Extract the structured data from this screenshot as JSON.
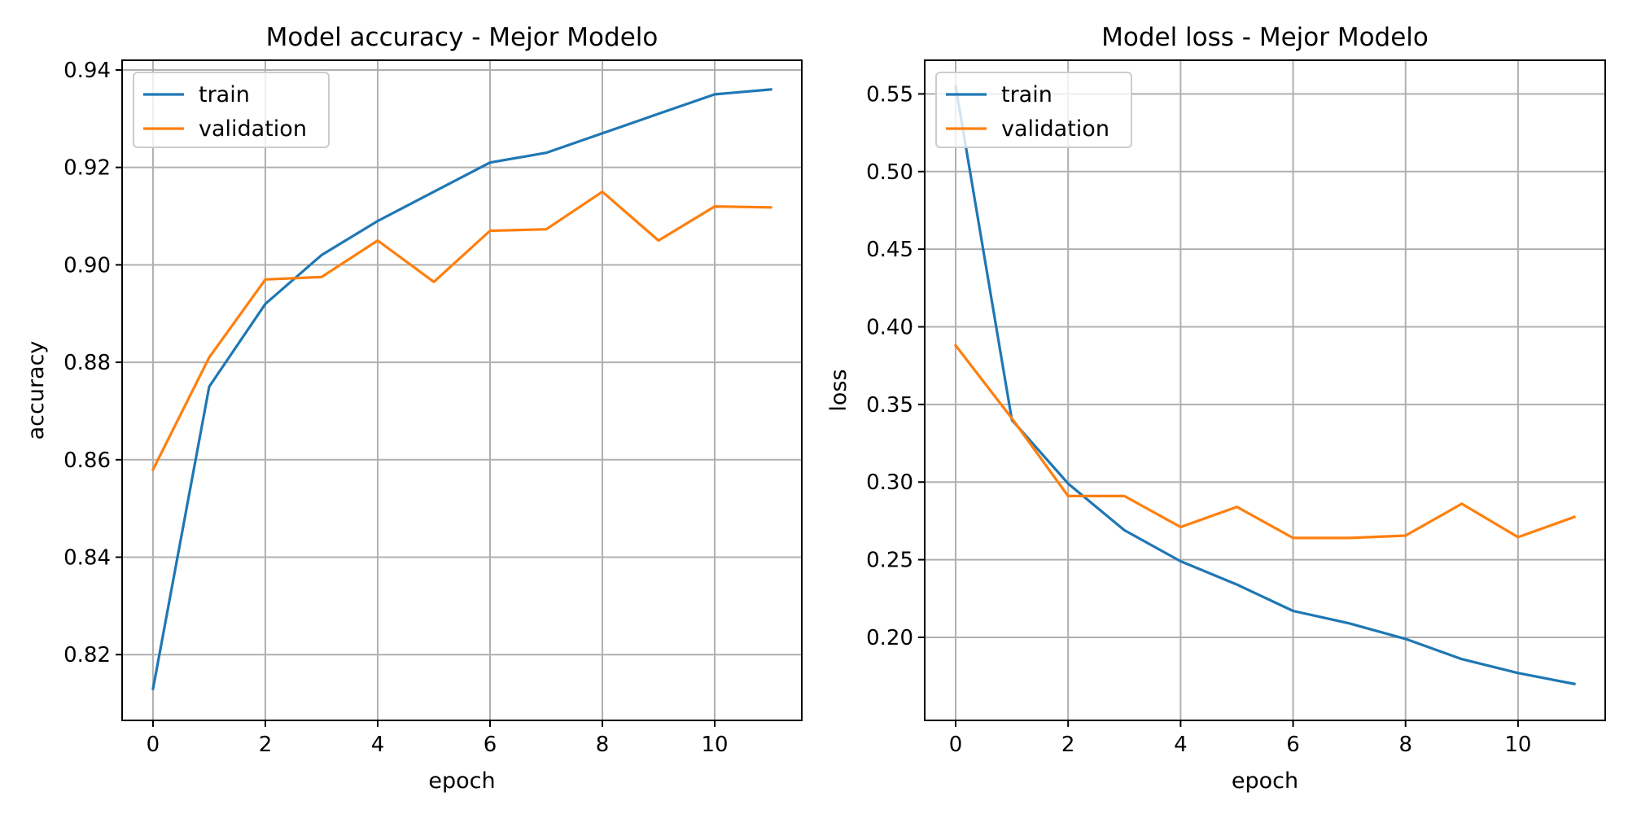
{
  "chart_data": [
    {
      "type": "line",
      "title": "Model accuracy - Mejor Modelo",
      "xlabel": "epoch",
      "ylabel": "accuracy",
      "x": [
        0,
        1,
        2,
        3,
        4,
        5,
        6,
        7,
        8,
        9,
        10,
        11
      ],
      "xlim": [
        -0.55,
        11.55
      ],
      "ylim": [
        0.8065,
        0.942
      ],
      "xticks": [
        0,
        2,
        4,
        6,
        8,
        10
      ],
      "yticks": [
        0.82,
        0.84,
        0.86,
        0.88,
        0.9,
        0.92,
        0.94
      ],
      "ytick_labels": [
        "0.82",
        "0.84",
        "0.86",
        "0.88",
        "0.90",
        "0.92",
        "0.94"
      ],
      "grid": true,
      "legend": "upper left",
      "series": [
        {
          "name": "train",
          "color": "#1f77b4",
          "values": [
            0.813,
            0.875,
            0.892,
            0.902,
            0.909,
            0.915,
            0.921,
            0.923,
            0.927,
            0.931,
            0.935,
            0.936
          ]
        },
        {
          "name": "validation",
          "color": "#ff7f0e",
          "values": [
            0.858,
            0.881,
            0.897,
            0.8975,
            0.905,
            0.8965,
            0.907,
            0.9073,
            0.915,
            0.905,
            0.912,
            0.9118
          ]
        }
      ]
    },
    {
      "type": "line",
      "title": "Model loss - Mejor Modelo",
      "xlabel": "epoch",
      "ylabel": "loss",
      "x": [
        0,
        1,
        2,
        3,
        4,
        5,
        6,
        7,
        8,
        9,
        10,
        11
      ],
      "xlim": [
        -0.55,
        11.55
      ],
      "ylim": [
        0.1465,
        0.5717
      ],
      "xticks": [
        0,
        2,
        4,
        6,
        8,
        10
      ],
      "yticks": [
        0.2,
        0.25,
        0.3,
        0.35,
        0.4,
        0.45,
        0.5,
        0.55
      ],
      "ytick_labels": [
        "0.20",
        "0.25",
        "0.30",
        "0.35",
        "0.40",
        "0.45",
        "0.50",
        "0.55"
      ],
      "grid": true,
      "legend": "upper left",
      "series": [
        {
          "name": "train",
          "color": "#1f77b4",
          "values": [
            0.555,
            0.34,
            0.299,
            0.269,
            0.249,
            0.234,
            0.217,
            0.209,
            0.199,
            0.186,
            0.177,
            0.17
          ]
        },
        {
          "name": "validation",
          "color": "#ff7f0e",
          "values": [
            0.388,
            0.341,
            0.291,
            0.291,
            0.271,
            0.284,
            0.264,
            0.264,
            0.2655,
            0.286,
            0.2645,
            0.2775
          ]
        }
      ]
    }
  ]
}
